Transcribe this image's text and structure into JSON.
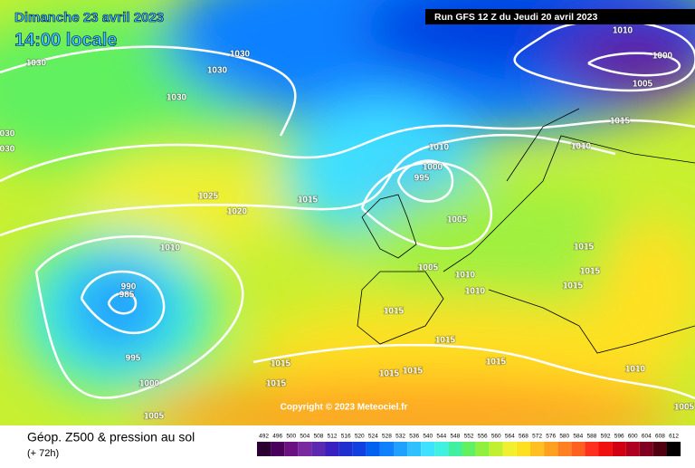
{
  "header": {
    "date": "Dimanche 23 avril 2023",
    "time": "14:00 locale",
    "run": "Run GFS 12 Z du Jeudi 20 avril 2023"
  },
  "copyright": "Copyright © 2023 Meteociel.fr",
  "footer": {
    "title": "Géop. Z500 & pression au sol",
    "lead": "(+ 72h)"
  },
  "isobar_labels": [
    "1030",
    "1030",
    "1030",
    "1030",
    "030",
    "030",
    "1025",
    "1020",
    "1015",
    "1010",
    "990",
    "985",
    "995",
    "1000",
    "1005",
    "1010",
    "1000",
    "995",
    "1005",
    "1005",
    "1010",
    "1010",
    "1015",
    "1015",
    "1015",
    "1015",
    "1015",
    "1015",
    "1015",
    "1010",
    "1000",
    "1005",
    "1015",
    "1010",
    "1015",
    "1015",
    "1015",
    "1010",
    "1005"
  ],
  "scale": {
    "values": [
      492,
      496,
      500,
      504,
      508,
      512,
      516,
      520,
      524,
      528,
      532,
      536,
      540,
      544,
      548,
      552,
      556,
      560,
      564,
      568,
      572,
      576,
      580,
      584,
      588,
      592,
      596,
      600,
      604,
      608,
      612
    ],
    "colors": [
      "#2a0030",
      "#4a005a",
      "#6a1080",
      "#7a2aa0",
      "#5a2ab0",
      "#3a20c0",
      "#2030d0",
      "#1040e0",
      "#0060f0",
      "#1080ff",
      "#20a0ff",
      "#30c0ff",
      "#40e0ff",
      "#40f0e0",
      "#40f0a0",
      "#60f060",
      "#90f040",
      "#c0f030",
      "#f0f030",
      "#ffe020",
      "#ffc020",
      "#ffa020",
      "#ff8020",
      "#ff6020",
      "#ff3020",
      "#f01010",
      "#d00010",
      "#b00020",
      "#800020",
      "#500010",
      "#000000"
    ]
  }
}
